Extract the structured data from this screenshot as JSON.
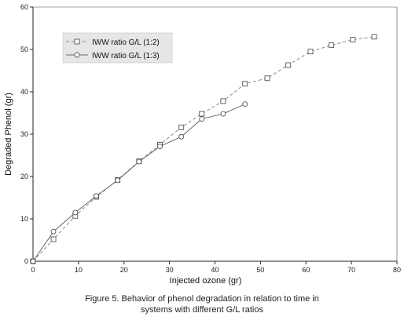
{
  "chart_data": {
    "type": "line",
    "title": "",
    "xlabel": "Injected ozone (gr)",
    "ylabel": "Degraded Phenol (gr)",
    "xlim": [
      0,
      80
    ],
    "ylim": [
      0,
      60
    ],
    "xticks": [
      "0",
      "10",
      "20",
      "30",
      "40",
      "50",
      "60",
      "70",
      "80"
    ],
    "yticks": [
      "0",
      "10",
      "20",
      "30",
      "40",
      "50",
      "60"
    ],
    "grid": false,
    "legend_position": "top-left",
    "series": [
      {
        "name": "IWW ratio G/L (1:2)",
        "style": "dashed",
        "marker": "square",
        "color": "#888888",
        "x": [
          0,
          4.5,
          9.3,
          13.9,
          18.6,
          23.3,
          27.9,
          32.6,
          37.1,
          41.8,
          46.6,
          51.5,
          56.1,
          61.0,
          65.6,
          70.3,
          75.0
        ],
        "y": [
          0,
          5.2,
          10.7,
          15.2,
          19.2,
          23.6,
          27.5,
          31.6,
          34.8,
          37.8,
          41.9,
          43.2,
          46.3,
          49.5,
          51.0,
          52.3,
          53.0
        ]
      },
      {
        "name": "IWW ratio G/L (1:3)",
        "style": "solid",
        "marker": "circle",
        "color": "#666666",
        "x": [
          0,
          4.5,
          9.3,
          13.9,
          18.6,
          23.3,
          27.9,
          32.6,
          37.1,
          41.8,
          46.6
        ],
        "y": [
          0,
          7.0,
          11.5,
          15.4,
          19.1,
          23.5,
          27.1,
          29.4,
          33.6,
          34.8,
          37.1
        ]
      }
    ]
  },
  "caption": {
    "line1": "Figure 5. Behavior of phenol degradation in relation to time in",
    "line2": "systems with different G/L ratios"
  }
}
